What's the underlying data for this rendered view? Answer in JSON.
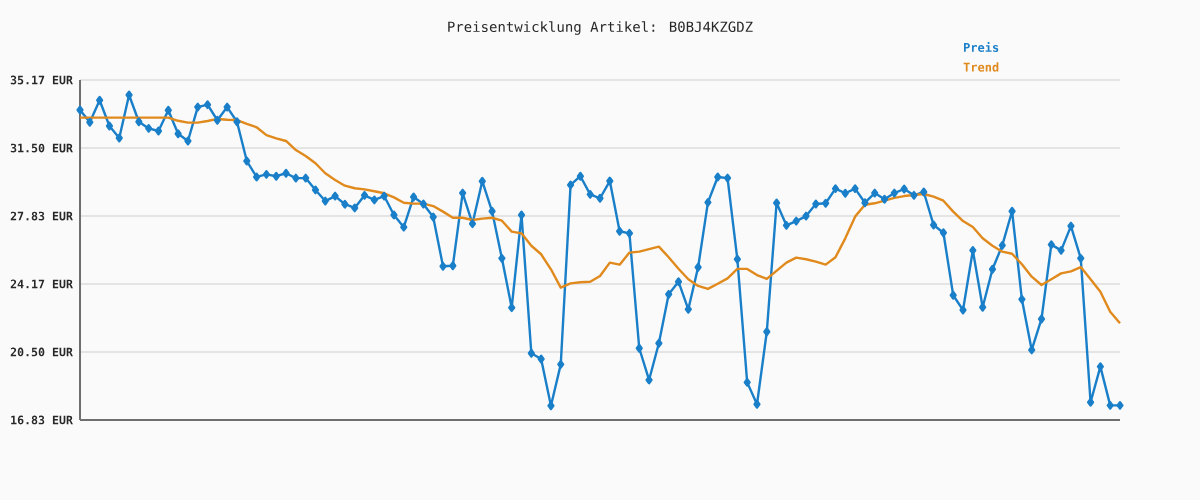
{
  "chart_data": {
    "type": "line",
    "title": "Preisentwicklung Artikel: B0BJ4KZGDZ",
    "categories": [
      null,
      null,
      null,
      null,
      null,
      null,
      null,
      null,
      null,
      null,
      null,
      null,
      null,
      null,
      null,
      null,
      null,
      null,
      null,
      null,
      null,
      null,
      null,
      null,
      null,
      null,
      null,
      null,
      null,
      null,
      null,
      null,
      null,
      null,
      null,
      null,
      null,
      null,
      null,
      null,
      null,
      null,
      null,
      null,
      null,
      null,
      null,
      null,
      null,
      null,
      null,
      null,
      null,
      null,
      null,
      null,
      null,
      null,
      null,
      null,
      null,
      null,
      null,
      null,
      null,
      null,
      null,
      null,
      null,
      null,
      null,
      null,
      null,
      null,
      null,
      null,
      null,
      null,
      null,
      null,
      null,
      null,
      null,
      null,
      null,
      null,
      null,
      null,
      null,
      null,
      null,
      null,
      null,
      null,
      null,
      null,
      null,
      null,
      null,
      null,
      null,
      null,
      null,
      null,
      null,
      null,
      null
    ],
    "series": [
      {
        "name": "Preis",
        "color": "#1a7fc9",
        "marker": "diamond",
        "values": [
          33.55,
          32.89,
          34.08,
          32.69,
          32.04,
          34.36,
          32.92,
          32.56,
          32.42,
          33.54,
          32.27,
          31.88,
          33.71,
          33.84,
          33.0,
          33.71,
          32.92,
          30.8,
          29.94,
          30.08,
          29.98,
          30.14,
          29.88,
          29.88,
          29.24,
          28.64,
          28.91,
          28.47,
          28.27,
          28.95,
          28.7,
          28.91,
          27.89,
          27.23,
          28.86,
          28.48,
          27.78,
          25.12,
          25.15,
          29.07,
          27.42,
          29.71,
          28.09,
          25.55,
          22.89,
          27.89,
          20.43,
          20.12,
          17.6,
          19.83,
          29.51,
          29.98,
          29.0,
          28.79,
          29.72,
          27.01,
          26.9,
          20.7,
          18.99,
          20.97,
          23.61,
          24.29,
          22.8,
          25.07,
          28.57,
          29.94,
          29.88,
          25.5,
          18.86,
          17.68,
          21.59,
          28.54,
          27.33,
          27.56,
          27.83,
          28.48,
          28.52,
          29.31,
          29.06,
          29.31,
          28.55,
          29.07,
          28.74,
          29.07,
          29.29,
          28.95,
          29.13,
          27.35,
          26.93,
          23.56,
          22.76,
          25.98,
          22.91,
          24.96,
          26.25,
          28.09,
          23.34,
          20.61,
          22.28,
          26.29,
          25.98,
          27.29,
          25.55,
          17.79,
          19.71,
          17.62,
          17.62
        ]
      },
      {
        "name": "Trend",
        "color": "#e08a1e",
        "marker": "none",
        "values": [
          33.14,
          33.14,
          33.14,
          33.14,
          33.14,
          33.14,
          33.14,
          33.14,
          33.14,
          33.14,
          32.97,
          32.87,
          32.87,
          32.96,
          33.07,
          33.03,
          33.01,
          32.8,
          32.62,
          32.2,
          32.02,
          31.88,
          31.39,
          31.07,
          30.68,
          30.14,
          29.78,
          29.47,
          29.33,
          29.27,
          29.17,
          29.06,
          28.84,
          28.55,
          28.5,
          28.5,
          28.37,
          28.07,
          27.74,
          27.74,
          27.62,
          27.69,
          27.74,
          27.58,
          26.99,
          26.9,
          26.23,
          25.77,
          24.96,
          23.97,
          24.2,
          24.26,
          24.29,
          24.6,
          25.32,
          25.21,
          25.86,
          25.91,
          26.05,
          26.18,
          25.61,
          24.99,
          24.42,
          24.06,
          23.9,
          24.18,
          24.47,
          24.98,
          24.98,
          24.65,
          24.44,
          24.88,
          25.32,
          25.59,
          25.5,
          25.37,
          25.21,
          25.61,
          26.63,
          27.8,
          28.44,
          28.52,
          28.66,
          28.81,
          28.91,
          28.97,
          29.02,
          28.88,
          28.66,
          28.07,
          27.56,
          27.24,
          26.63,
          26.23,
          25.91,
          25.8,
          25.23,
          24.56,
          24.11,
          24.42,
          24.74,
          24.85,
          25.08,
          24.42,
          23.75,
          22.67,
          22.05
        ]
      }
    ],
    "ylim": [
      16.83,
      35.17
    ],
    "yticks": [
      {
        "value": 16.83,
        "label": "16.83 EUR"
      },
      {
        "value": 20.5,
        "label": "20.50 EUR"
      },
      {
        "value": 24.17,
        "label": "24.17 EUR"
      },
      {
        "value": 27.83,
        "label": "27.83 EUR"
      },
      {
        "value": 31.5,
        "label": "31.50 EUR"
      },
      {
        "value": 35.17,
        "label": "35.17 EUR"
      }
    ],
    "grid": "y",
    "legend": "top right",
    "line_style": "solid"
  }
}
